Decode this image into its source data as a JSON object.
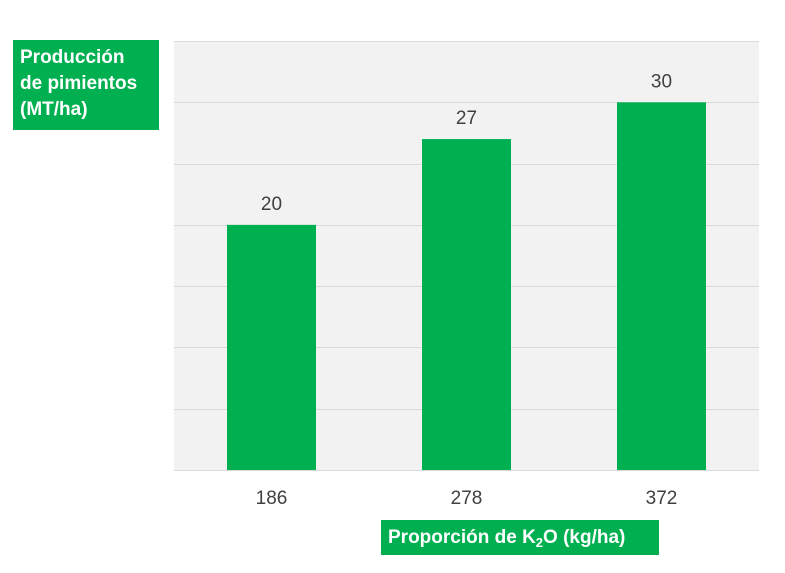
{
  "chart_data": {
    "type": "bar",
    "categories": [
      "186",
      "278",
      "372"
    ],
    "values": [
      20,
      27,
      30
    ],
    "data_labels": [
      "20",
      "27",
      "30"
    ],
    "ylabel_lines": [
      "Producción",
      "de pimientos",
      "(MT/ha)"
    ],
    "xlabel": {
      "prefix": "Proporción de K",
      "subscript": "2",
      "suffix": "O (kg/ha)"
    },
    "ylim": [
      0,
      35
    ],
    "ytick_step": 5,
    "grid": true,
    "legend": "none",
    "colors": {
      "bar": "#00b050",
      "plot_background": "#f2f2f2",
      "gridline": "#d9d9d9",
      "label_box": "#00b050",
      "text": "#404040"
    }
  }
}
